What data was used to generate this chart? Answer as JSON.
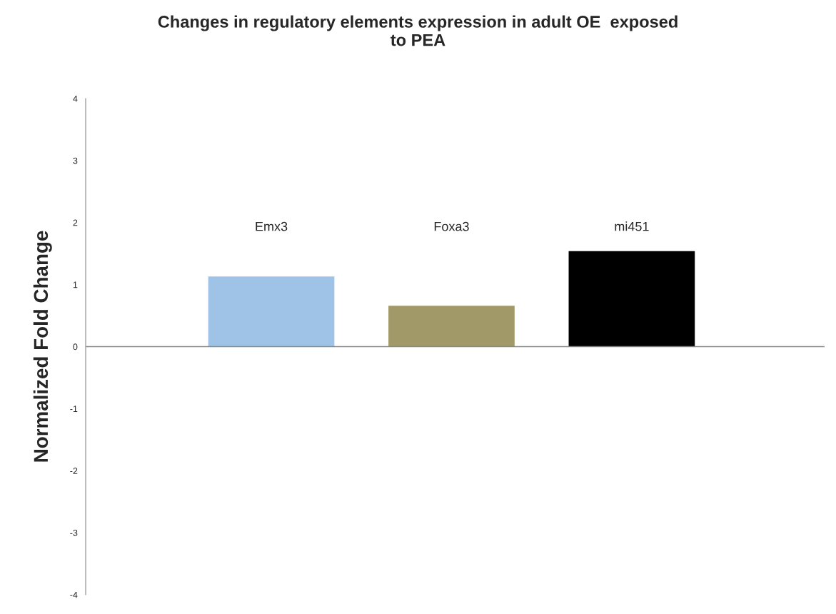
{
  "chart_data": {
    "type": "bar",
    "title": "Changes in regulatory elements expression in adult OE  exposed\nto PEA",
    "ylabel": "Normalized Fold Change",
    "categories": [
      "Emx3",
      "Foxa3",
      "mi451"
    ],
    "values": [
      1.13,
      0.66,
      1.54
    ],
    "colors": [
      "#9fc3e7",
      "#a19a68",
      "#000000"
    ],
    "ylim": [
      -4,
      4
    ],
    "yticks": [
      -4,
      -3,
      -2,
      -1,
      0,
      1,
      2,
      3,
      4
    ],
    "ref_lines": [
      {
        "axis": "y",
        "value": 0,
        "color": "#888888"
      }
    ]
  }
}
